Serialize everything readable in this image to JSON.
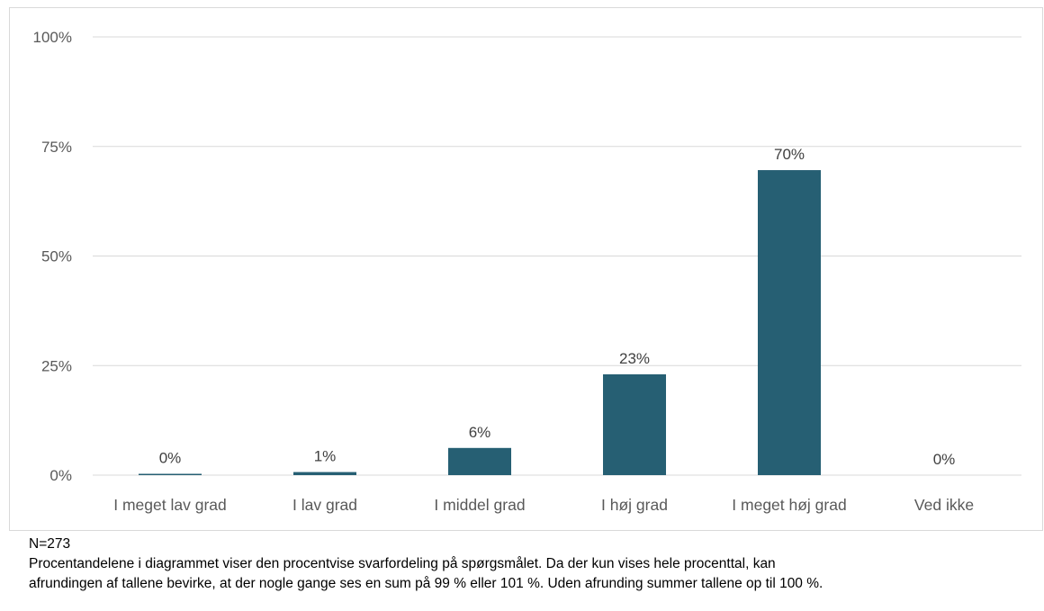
{
  "chart_data": {
    "type": "bar",
    "categories": [
      "I meget lav grad",
      "I lav grad",
      "I middel grad",
      "I høj grad",
      "I meget høj grad",
      "Ved ikke"
    ],
    "values": [
      0.3,
      0.7,
      6.2,
      23.0,
      69.6,
      0.0
    ],
    "data_labels": [
      "0%",
      "1%",
      "6%",
      "23%",
      "70%",
      "0%"
    ],
    "y_ticks": [
      0,
      25,
      50,
      75,
      100
    ],
    "y_tick_labels": [
      "0%",
      "25%",
      "50%",
      "75%",
      "100%"
    ],
    "ylim": [
      0,
      100
    ],
    "grid": true,
    "title": "",
    "xlabel": "",
    "ylabel": "",
    "bar_color": "#265F73",
    "grid_color": "#d9d9d9"
  },
  "notes": {
    "n_label": "N=273",
    "line1": "Procentandelene i diagrammet viser den procentvise svarfordeling på spørgsmålet. Da der kun vises hele procenttal, kan",
    "line2": "afrundingen af tallene bevirke, at der nogle gange ses en sum på 99 % eller 101 %. Uden afrunding summer tallene op til 100 %."
  }
}
